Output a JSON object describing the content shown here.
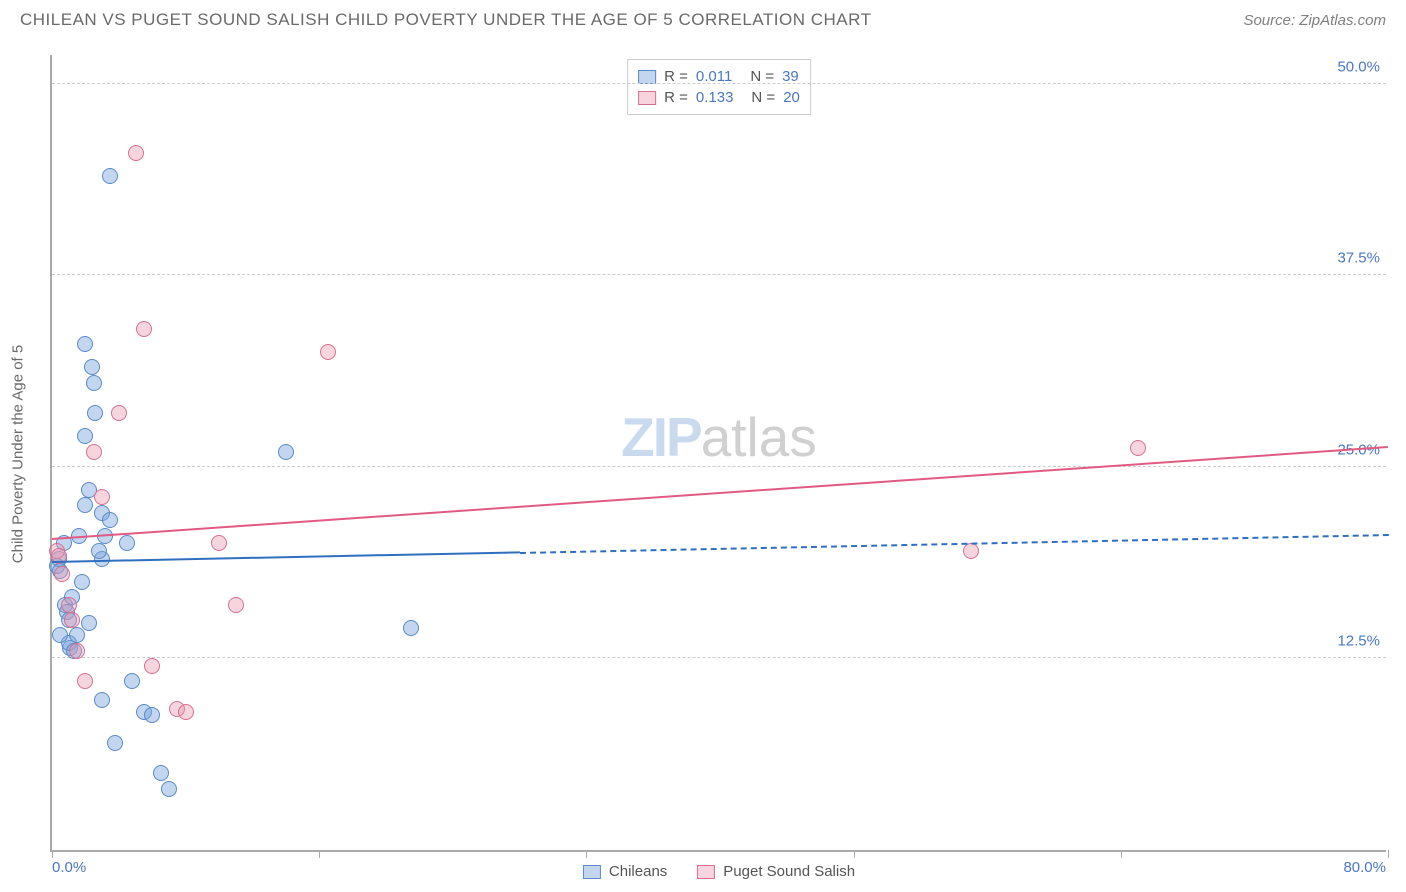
{
  "header": {
    "title": "CHILEAN VS PUGET SOUND SALISH CHILD POVERTY UNDER THE AGE OF 5 CORRELATION CHART",
    "source": "Source: ZipAtlas.com"
  },
  "chart": {
    "type": "scatter",
    "ylabel": "Child Poverty Under the Age of 5",
    "background_color": "#ffffff",
    "grid_color": "#cccccc",
    "axis_color": "#aaaaaa",
    "label_color": "#4a77c4",
    "text_color": "#6a6a6a",
    "xlim": [
      0,
      80
    ],
    "ylim": [
      0,
      52
    ],
    "xticks": [
      0,
      16,
      32,
      48,
      64,
      80
    ],
    "xaxis_labels": [
      {
        "pos": 0,
        "text": "0.0%"
      },
      {
        "pos": 80,
        "text": "80.0%"
      }
    ],
    "yticks": [
      {
        "pos": 12.5,
        "text": "12.5%"
      },
      {
        "pos": 25.0,
        "text": "25.0%"
      },
      {
        "pos": 37.5,
        "text": "37.5%"
      },
      {
        "pos": 50.0,
        "text": "50.0%"
      }
    ],
    "series": [
      {
        "name": "Chileans",
        "color_fill": "rgba(120,165,220,0.45)",
        "color_stroke": "#5a8ac8",
        "R": "0.011",
        "N": "39",
        "trend": {
          "x1": 0,
          "y1": 18.7,
          "x2": 80,
          "y2": 20.5,
          "solid_until_x": 28,
          "color": "#2f6fc0"
        },
        "points": [
          {
            "x": 0.3,
            "y": 18.5
          },
          {
            "x": 0.4,
            "y": 19.0
          },
          {
            "x": 0.5,
            "y": 18.2
          },
          {
            "x": 0.8,
            "y": 16.0
          },
          {
            "x": 0.9,
            "y": 15.5
          },
          {
            "x": 1.0,
            "y": 15.0
          },
          {
            "x": 1.1,
            "y": 13.2
          },
          {
            "x": 1.0,
            "y": 13.5
          },
          {
            "x": 1.3,
            "y": 13.0
          },
          {
            "x": 1.5,
            "y": 14.0
          },
          {
            "x": 2.2,
            "y": 14.8
          },
          {
            "x": 2.0,
            "y": 33.0
          },
          {
            "x": 2.4,
            "y": 31.5
          },
          {
            "x": 2.5,
            "y": 30.5
          },
          {
            "x": 2.6,
            "y": 28.5
          },
          {
            "x": 2.0,
            "y": 22.5
          },
          {
            "x": 2.2,
            "y": 23.5
          },
          {
            "x": 3.0,
            "y": 22.0
          },
          {
            "x": 3.5,
            "y": 21.5
          },
          {
            "x": 3.2,
            "y": 20.5
          },
          {
            "x": 3.0,
            "y": 19.0
          },
          {
            "x": 3.5,
            "y": 44.0
          },
          {
            "x": 4.5,
            "y": 20.0
          },
          {
            "x": 4.8,
            "y": 11.0
          },
          {
            "x": 5.5,
            "y": 9.0
          },
          {
            "x": 6.0,
            "y": 8.8
          },
          {
            "x": 3.0,
            "y": 9.8
          },
          {
            "x": 3.8,
            "y": 7.0
          },
          {
            "x": 6.5,
            "y": 5.0
          },
          {
            "x": 7.0,
            "y": 4.0
          },
          {
            "x": 14.0,
            "y": 26.0
          },
          {
            "x": 21.5,
            "y": 14.5
          },
          {
            "x": 1.2,
            "y": 16.5
          },
          {
            "x": 1.8,
            "y": 17.5
          },
          {
            "x": 0.5,
            "y": 14.0
          },
          {
            "x": 2.8,
            "y": 19.5
          },
          {
            "x": 0.7,
            "y": 20.0
          },
          {
            "x": 1.6,
            "y": 20.5
          },
          {
            "x": 2.0,
            "y": 27.0
          }
        ]
      },
      {
        "name": "Puget Sound Salish",
        "color_fill": "rgba(235,150,175,0.40)",
        "color_stroke": "#d76f93",
        "R": "0.133",
        "N": "20",
        "trend": {
          "x1": 0,
          "y1": 20.2,
          "x2": 80,
          "y2": 26.2,
          "solid_until_x": 80,
          "color": "#e05a84"
        },
        "points": [
          {
            "x": 0.3,
            "y": 19.5
          },
          {
            "x": 0.4,
            "y": 19.2
          },
          {
            "x": 0.6,
            "y": 18.0
          },
          {
            "x": 1.0,
            "y": 16.0
          },
          {
            "x": 1.2,
            "y": 15.0
          },
          {
            "x": 1.5,
            "y": 13.0
          },
          {
            "x": 2.0,
            "y": 11.0
          },
          {
            "x": 2.5,
            "y": 26.0
          },
          {
            "x": 3.0,
            "y": 23.0
          },
          {
            "x": 4.0,
            "y": 28.5
          },
          {
            "x": 5.0,
            "y": 45.5
          },
          {
            "x": 5.5,
            "y": 34.0
          },
          {
            "x": 6.0,
            "y": 12.0
          },
          {
            "x": 7.5,
            "y": 9.2
          },
          {
            "x": 8.0,
            "y": 9.0
          },
          {
            "x": 10.0,
            "y": 20.0
          },
          {
            "x": 11.0,
            "y": 16.0
          },
          {
            "x": 16.5,
            "y": 32.5
          },
          {
            "x": 55.0,
            "y": 19.5
          },
          {
            "x": 65.0,
            "y": 26.2
          }
        ]
      }
    ],
    "legend_bottom": [
      {
        "swatch_fill": "rgba(120,165,220,0.45)",
        "swatch_stroke": "#5a8ac8",
        "label": "Chileans"
      },
      {
        "swatch_fill": "rgba(235,150,175,0.40)",
        "swatch_stroke": "#d76f93",
        "label": "Puget Sound Salish"
      }
    ],
    "watermark": {
      "part1": "ZIP",
      "part2": "atlas"
    }
  }
}
